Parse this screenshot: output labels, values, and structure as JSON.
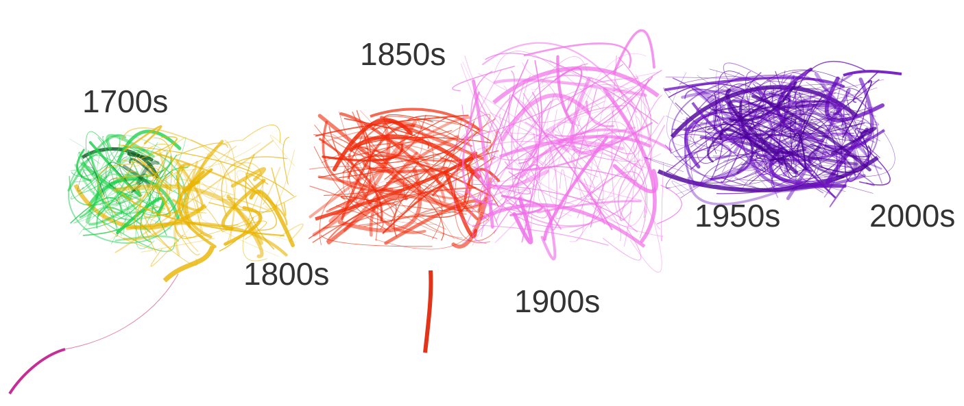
{
  "labels": {
    "l1700": "1700s",
    "l1800": "1800s",
    "l1850": "1850s",
    "l1900": "1900s",
    "l1950": "1950s",
    "l2000": "2000s"
  },
  "colors": {
    "1700s": "#1fd04a",
    "1700s_dark": "#0b5a26",
    "1800s": "#e8b400",
    "1850s": "#f02a0a",
    "1900s": "#f06ee8",
    "1950s": "#6a0fbf",
    "2000s": "#4a0096",
    "label_text": "#333333"
  }
}
